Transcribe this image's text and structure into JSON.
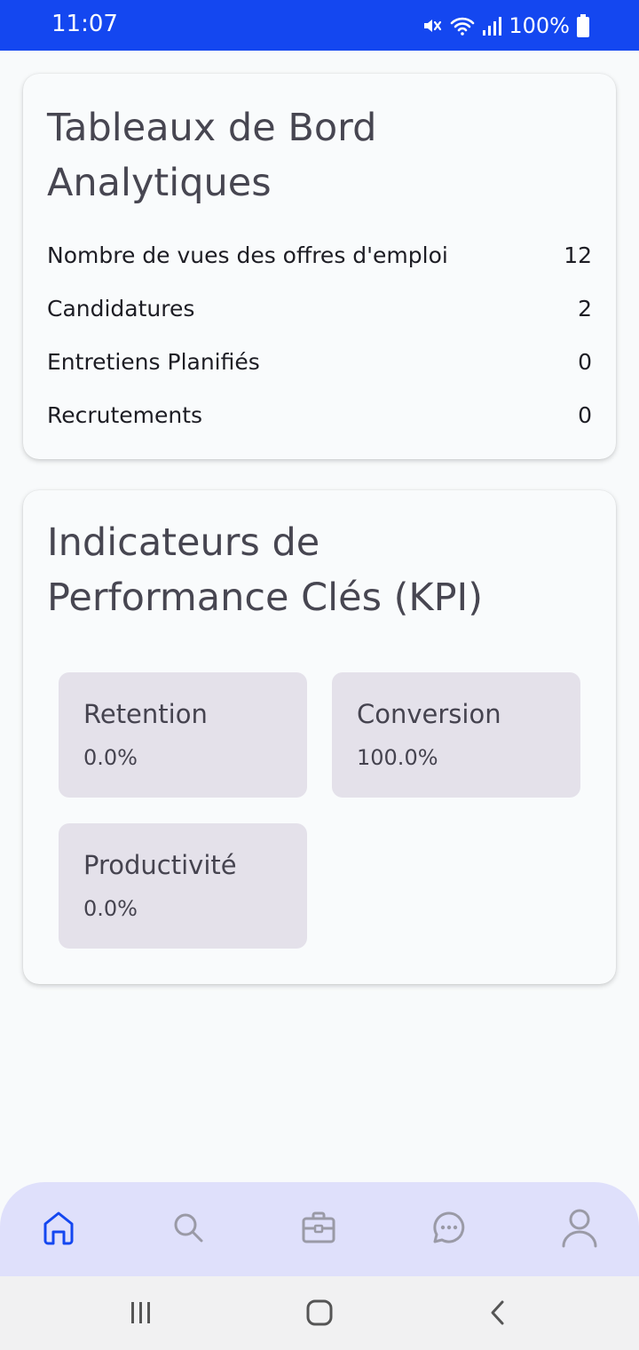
{
  "status_bar": {
    "time": "11:07",
    "battery": "100%",
    "icons": [
      "mute-icon",
      "wifi-icon",
      "signal-icon",
      "battery-icon"
    ]
  },
  "analytics": {
    "title": "Tableaux de Bord Analytiques",
    "rows": [
      {
        "label": "Nombre de vues des offres d'emploi",
        "value": "12"
      },
      {
        "label": "Candidatures",
        "value": "2"
      },
      {
        "label": "Entretiens Planifiés",
        "value": "0"
      },
      {
        "label": "Recrutements",
        "value": "0"
      }
    ]
  },
  "kpi": {
    "title": "Indicateurs de Performance Clés (KPI)",
    "tiles": [
      {
        "label": "Retention",
        "value": "0.0%"
      },
      {
        "label": "Conversion",
        "value": "100.0%"
      },
      {
        "label": "Productivité",
        "value": "0.0%"
      }
    ]
  },
  "bottom_nav": {
    "items": [
      "home-icon",
      "search-icon",
      "briefcase-icon",
      "chat-icon",
      "profile-icon"
    ],
    "active": "home-icon",
    "active_color": "#1447f0",
    "inactive_color": "#9a9aa6"
  },
  "system_nav": [
    "recent-apps-icon",
    "home-button-icon",
    "back-icon"
  ]
}
